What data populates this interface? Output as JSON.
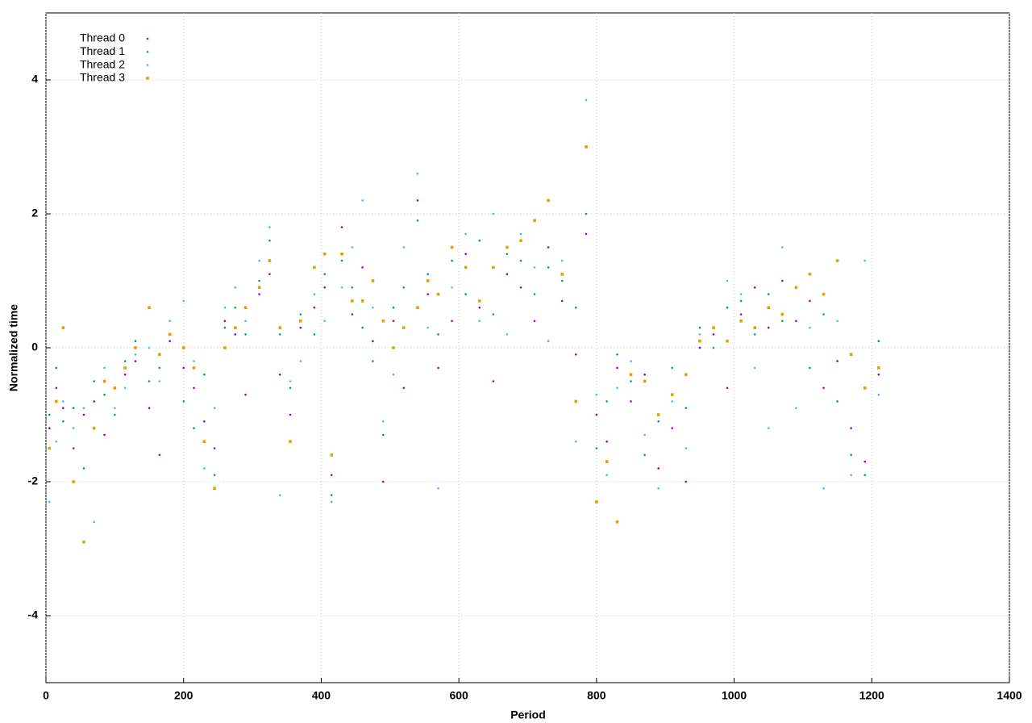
{
  "chart_data": {
    "type": "scatter",
    "xlabel": "Period",
    "ylabel": "Normalized time",
    "xlim": [
      0,
      1400
    ],
    "xticks": [
      0,
      200,
      400,
      600,
      800,
      1000,
      1200,
      1400
    ],
    "ylim": [
      -5,
      5
    ],
    "yticks": [
      -4,
      -2,
      0,
      2,
      4
    ],
    "grid": true,
    "legend": "top-left",
    "x": [
      5,
      15,
      25,
      40,
      55,
      70,
      85,
      100,
      115,
      130,
      150,
      165,
      180,
      200,
      215,
      230,
      245,
      260,
      275,
      290,
      310,
      325,
      340,
      355,
      370,
      390,
      405,
      415,
      430,
      445,
      460,
      475,
      490,
      505,
      520,
      540,
      555,
      570,
      590,
      610,
      630,
      650,
      670,
      690,
      710,
      730,
      750,
      770,
      785,
      800,
      815,
      830,
      850,
      870,
      890,
      910,
      930,
      950,
      970,
      990,
      1010,
      1030,
      1050,
      1070,
      1090,
      1110,
      1130,
      1150,
      1170,
      1190,
      1210
    ],
    "series": [
      {
        "name": "Thread 0",
        "color": "#9400d3",
        "marker": "dot",
        "values": [
          -1.2,
          -0.6,
          -0.9,
          -1.5,
          -1.0,
          -0.8,
          -1.3,
          -0.6,
          -0.4,
          -0.2,
          -0.9,
          -1.6,
          0.1,
          -0.3,
          -0.6,
          -1.1,
          -1.5,
          0.4,
          0.2,
          -0.7,
          0.8,
          1.1,
          -0.4,
          -1.0,
          0.3,
          0.6,
          0.9,
          -1.9,
          1.8,
          0.5,
          1.2,
          0.1,
          -2.0,
          0.4,
          -0.6,
          2.2,
          0.8,
          -0.3,
          0.4,
          1.4,
          0.6,
          -0.5,
          1.1,
          0.9,
          0.4,
          1.5,
          0.7,
          -0.1,
          1.7,
          -1.0,
          -1.4,
          -0.3,
          -0.8,
          -0.4,
          -1.8,
          -1.2,
          -2.0,
          0.0,
          0.2,
          -0.6,
          0.5,
          0.9,
          0.3,
          1.0,
          0.4,
          0.7,
          -0.6,
          -0.2,
          -1.2,
          -1.7,
          -0.4
        ]
      },
      {
        "name": "Thread 1",
        "color": "#009e73",
        "marker": "dot",
        "values": [
          -1.0,
          -0.3,
          -1.1,
          -0.9,
          -1.8,
          -0.5,
          -0.7,
          -1.0,
          -0.2,
          0.1,
          -0.5,
          -0.3,
          0.2,
          -0.8,
          -1.2,
          -0.4,
          -1.9,
          0.3,
          0.6,
          0.2,
          1.0,
          1.6,
          0.2,
          -0.6,
          0.5,
          0.2,
          1.1,
          -2.2,
          1.3,
          0.9,
          0.3,
          -0.2,
          -1.3,
          0.6,
          0.9,
          1.9,
          1.1,
          0.2,
          1.3,
          0.8,
          1.6,
          0.5,
          1.4,
          1.3,
          0.8,
          1.2,
          1.0,
          0.6,
          2.0,
          -1.5,
          -0.8,
          -0.1,
          -0.5,
          -1.6,
          -1.1,
          -0.3,
          -0.9,
          0.3,
          0.0,
          0.6,
          0.7,
          0.2,
          0.8,
          0.4,
          0.9,
          -0.3,
          0.5,
          -0.8,
          -1.6,
          -1.9,
          0.1
        ]
      },
      {
        "name": "Thread 2",
        "color": "#56b4e9",
        "marker": "dot",
        "values": [
          -2.3,
          -1.4,
          -0.8,
          -1.2,
          -0.9,
          -2.6,
          -0.3,
          -0.9,
          -0.6,
          -0.1,
          0.0,
          -0.5,
          0.4,
          0.7,
          -0.2,
          -1.8,
          -0.9,
          0.6,
          0.9,
          0.4,
          1.3,
          1.8,
          -2.2,
          -0.5,
          -0.2,
          0.8,
          0.4,
          -2.3,
          0.9,
          1.5,
          2.2,
          0.6,
          -1.1,
          -0.4,
          1.5,
          2.6,
          0.3,
          -2.1,
          0.9,
          1.7,
          0.4,
          2.0,
          0.2,
          1.7,
          1.2,
          0.1,
          1.3,
          -1.4,
          3.7,
          -0.7,
          -1.9,
          -0.6,
          -0.2,
          -1.3,
          -2.1,
          -0.8,
          -1.5,
          0.2,
          0.3,
          1.0,
          0.8,
          -0.3,
          -1.2,
          1.5,
          -0.9,
          0.3,
          -2.1,
          0.4,
          -1.9,
          1.3,
          -0.7
        ]
      },
      {
        "name": "Thread 3",
        "color": "#e69f00",
        "marker": "square",
        "values": [
          -1.5,
          -0.8,
          0.3,
          -2.0,
          -2.9,
          -1.2,
          -0.5,
          -0.6,
          -0.3,
          0.0,
          0.6,
          -0.1,
          0.2,
          0.0,
          -0.3,
          -1.4,
          -2.1,
          0.0,
          0.3,
          0.6,
          0.9,
          1.3,
          0.3,
          -1.4,
          0.4,
          1.2,
          1.4,
          -1.6,
          1.4,
          0.7,
          0.7,
          1.0,
          0.4,
          0.0,
          0.3,
          0.6,
          1.0,
          0.8,
          1.5,
          1.2,
          0.7,
          1.2,
          1.5,
          1.6,
          1.9,
          2.2,
          1.1,
          -0.8,
          3.0,
          -2.3,
          -1.7,
          -2.6,
          -0.4,
          -0.5,
          -1.0,
          -0.7,
          -0.4,
          0.1,
          0.3,
          0.1,
          0.4,
          0.3,
          0.6,
          0.5,
          0.9,
          1.1,
          0.8,
          1.3,
          -0.1,
          -0.6,
          -0.3
        ]
      }
    ]
  }
}
